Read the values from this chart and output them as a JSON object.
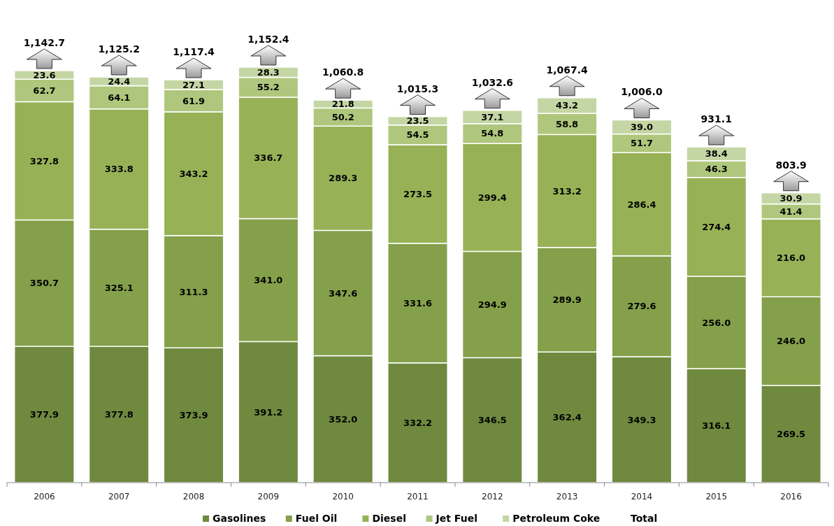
{
  "chart_data": {
    "type": "bar",
    "stacked": true,
    "legend": "bottom",
    "categories": [
      "2006",
      "2007",
      "2008",
      "2009",
      "2010",
      "2011",
      "2012",
      "2013",
      "2014",
      "2015",
      "2016"
    ],
    "series": [
      {
        "name": "Gasolines",
        "color": "#6f8a3f",
        "values": [
          377.9,
          377.8,
          373.9,
          391.2,
          352.0,
          332.2,
          346.5,
          362.4,
          349.3,
          316.1,
          269.5
        ],
        "value_labels": [
          "377.9",
          "377.8",
          "373.9",
          "391.2",
          "352.0",
          "332.2",
          "346.5",
          "362.4",
          "349.3",
          "316.1",
          "269.5"
        ]
      },
      {
        "name": "Fuel Oil",
        "color": "#84a04a",
        "values": [
          350.7,
          325.1,
          311.3,
          341.0,
          347.6,
          331.6,
          294.9,
          289.9,
          279.6,
          256.0,
          246.0
        ],
        "value_labels": [
          "350.7",
          "325.1",
          "311.3",
          "341.0",
          "347.6",
          "331.6",
          "294.9",
          "289.9",
          "279.6",
          "256.0",
          "246.0"
        ]
      },
      {
        "name": "Diesel",
        "color": "#97b256",
        "values": [
          327.8,
          333.8,
          343.2,
          336.7,
          289.3,
          273.5,
          299.4,
          313.2,
          286.4,
          274.4,
          216.0
        ],
        "value_labels": [
          "327.8",
          "333.8",
          "343.2",
          "336.7",
          "289.3",
          "273.5",
          "299.4",
          "313.2",
          "286.4",
          "274.4",
          "216.0"
        ]
      },
      {
        "name": "Jet Fuel",
        "color": "#afc77c",
        "values": [
          62.7,
          64.1,
          61.9,
          55.2,
          50.2,
          54.5,
          54.8,
          58.8,
          51.7,
          46.3,
          41.4
        ],
        "value_labels": [
          "62.7",
          "64.1",
          "61.9",
          "55.2",
          "50.2",
          "54.5",
          "54.8",
          "58.8",
          "51.7",
          "46.3",
          "41.4"
        ]
      },
      {
        "name": "Petroleum Coke",
        "color": "#c4d6a4",
        "values": [
          23.6,
          24.4,
          27.1,
          28.3,
          21.8,
          23.5,
          37.1,
          43.2,
          39.0,
          38.4,
          30.9
        ],
        "value_labels": [
          "23.6",
          "24.4",
          "27.1",
          "28.3",
          "21.8",
          "23.5",
          "37.1",
          "43.2",
          "39.0",
          "38.4",
          "30.9"
        ]
      }
    ],
    "totals": [
      "1,142.7",
      "1,125.2",
      "1,117.4",
      "1,152.4",
      "1,060.8",
      "1,015.3",
      "1,032.6",
      "1,067.4",
      "1,006.0",
      "931.1",
      "803.9"
    ],
    "annotations": [
      "Total"
    ]
  }
}
